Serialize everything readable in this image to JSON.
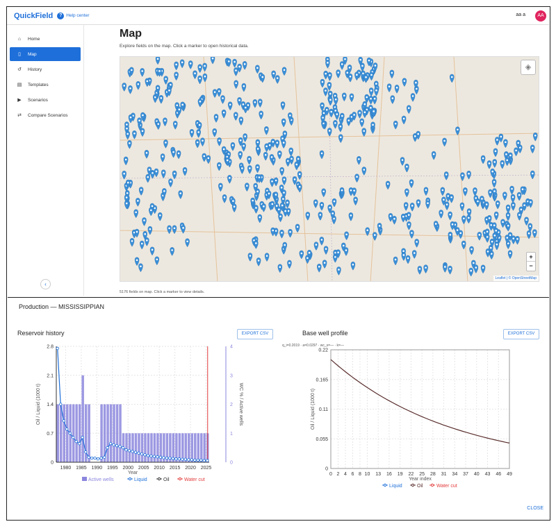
{
  "app": {
    "brand": "QuickField",
    "help_label": "Help center",
    "user_name": "aa a",
    "avatar_initials": "AA"
  },
  "sidebar": {
    "items": [
      {
        "label": "Home",
        "icon": "home-icon",
        "active": false
      },
      {
        "label": "Map",
        "icon": "map-icon",
        "active": true
      },
      {
        "label": "History",
        "icon": "history-icon",
        "active": false
      },
      {
        "label": "Templates",
        "icon": "document-icon",
        "active": false
      },
      {
        "label": "Scenarios",
        "icon": "play-icon",
        "active": false
      },
      {
        "label": "Compare Scenarios",
        "icon": "compare-icon",
        "active": false
      }
    ],
    "collapse_icon": "chevron-left-icon"
  },
  "main": {
    "title": "Map",
    "subtitle": "Explore fields on the map. Click a marker to open historical data.",
    "map_caption": "5176 fields on map. Click a marker to view details.",
    "attribution": "Leaflet | © OpenStreetMap",
    "zoom_in": "+",
    "zoom_out": "−",
    "marker_color": "#3a8fd8"
  },
  "panel": {
    "title": "Production — MISSISSIPPIAN",
    "close_label": "CLOSE",
    "export_label": "EXPORT CSV",
    "reservoir_title": "Reservoir history",
    "base_title": "Base well profile",
    "base_params": "q_i=0.2019 · a=0.0297 · wc_s=— · k=—"
  },
  "chart_data": [
    {
      "type": "bar",
      "title": "Reservoir history",
      "xlabel": "Year",
      "ylabel": "Oil / Liquid (1000 t)",
      "y2label": "WC % / Active wells",
      "ylim": [
        0,
        2.8
      ],
      "y2lim": [
        0,
        4
      ],
      "yticks": [
        "0",
        "0.7",
        "1.4",
        "2.1",
        "2.8"
      ],
      "y2ticks": [
        "0",
        "1",
        "2",
        "3",
        "4"
      ],
      "xticks": [
        "1980",
        "1985",
        "1990",
        "1995",
        "2000",
        "2005",
        "2010",
        "2015",
        "2020",
        "2025"
      ],
      "legend": [
        "Active wells",
        "Liquid",
        "Oil",
        "Water cut"
      ],
      "colors": {
        "bars": "#8b86dd",
        "liquid": "#1e6fd9",
        "oil": "#333333",
        "water_cut": "#e33b3b"
      },
      "years": [
        1977,
        1978,
        1979,
        1980,
        1981,
        1982,
        1983,
        1984,
        1985,
        1986,
        1987,
        1988,
        1989,
        1990,
        1991,
        1992,
        1993,
        1994,
        1995,
        1996,
        1997,
        1998,
        1999,
        2000,
        2001,
        2002,
        2003,
        2004,
        2005,
        2006,
        2007,
        2008,
        2009,
        2010,
        2011,
        2012,
        2013,
        2014,
        2015,
        2016,
        2017,
        2018,
        2019,
        2020,
        2021,
        2022,
        2023,
        2024,
        2025
      ],
      "active_wells": [
        2,
        2,
        2,
        2,
        2,
        2,
        2,
        2,
        3,
        2,
        2,
        0,
        0,
        0,
        2,
        2,
        2,
        2,
        2,
        2,
        2,
        1,
        1,
        1,
        1,
        1,
        1,
        1,
        1,
        1,
        1,
        1,
        1,
        1,
        1,
        1,
        1,
        1,
        1,
        1,
        1,
        1,
        1,
        1,
        1,
        1,
        1,
        1,
        1
      ],
      "liquid": [
        2.75,
        1.4,
        1.0,
        0.8,
        0.7,
        0.6,
        0.5,
        0.45,
        0.6,
        0.25,
        0.12,
        0.1,
        0.1,
        0.08,
        0.1,
        0.12,
        0.35,
        0.45,
        0.42,
        0.4,
        0.38,
        0.35,
        0.3,
        0.28,
        0.26,
        0.24,
        0.22,
        0.2,
        0.18,
        0.16,
        0.15,
        0.14,
        0.13,
        0.12,
        0.11,
        0.1,
        0.1,
        0.09,
        0.08,
        0.08,
        0.07,
        0.07,
        0.06,
        0.06,
        0.05,
        0.05,
        0.05,
        0.04,
        0.04
      ],
      "water_cut_year": 2025.5
    },
    {
      "type": "line",
      "title": "Base well profile",
      "xlabel": "Year index",
      "ylabel": "Oil / Liquid (1000 t)",
      "ylim": [
        0,
        0.22
      ],
      "xlim": [
        0,
        49
      ],
      "yticks": [
        "0",
        "0.055",
        "0.11",
        "0.165",
        "0.22"
      ],
      "xticks": [
        "0",
        "2",
        "4",
        "6",
        "8",
        "10",
        "13",
        "16",
        "19",
        "22",
        "25",
        "28",
        "31",
        "34",
        "37",
        "40",
        "43",
        "46",
        "49"
      ],
      "legend": [
        "Liquid",
        "Oil",
        "Water cut"
      ],
      "q_i": 0.2019,
      "a": 0.0297,
      "colors": {
        "liquid": "#1e6fd9",
        "oil": "#5a2d2d",
        "water_cut": "#e33b3b"
      }
    }
  ]
}
